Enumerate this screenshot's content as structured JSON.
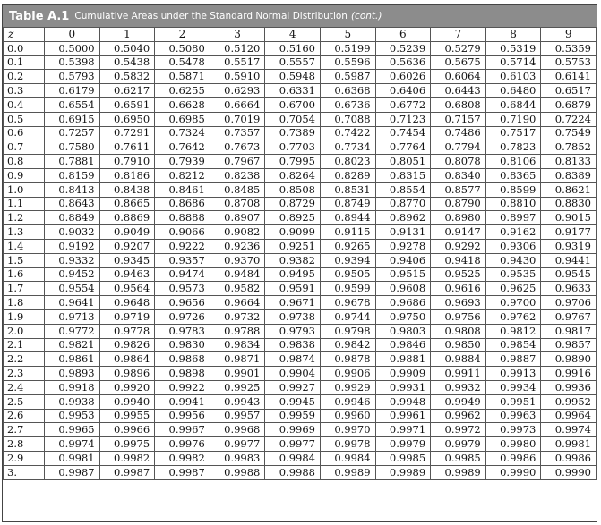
{
  "title": {
    "label": "Table A.1",
    "text": "Cumulative Areas under the Standard Normal Distribution",
    "cont": "(cont.)"
  },
  "columns": [
    "z",
    "0",
    "1",
    "2",
    "3",
    "4",
    "5",
    "6",
    "7",
    "8",
    "9"
  ],
  "rows": [
    {
      "z": "0.0",
      "v": [
        "0.5000",
        "0.5040",
        "0.5080",
        "0.5120",
        "0.5160",
        "0.5199",
        "0.5239",
        "0.5279",
        "0.5319",
        "0.5359"
      ]
    },
    {
      "z": "0.1",
      "v": [
        "0.5398",
        "0.5438",
        "0.5478",
        "0.5517",
        "0.5557",
        "0.5596",
        "0.5636",
        "0.5675",
        "0.5714",
        "0.5753"
      ]
    },
    {
      "z": "0.2",
      "v": [
        "0.5793",
        "0.5832",
        "0.5871",
        "0.5910",
        "0.5948",
        "0.5987",
        "0.6026",
        "0.6064",
        "0.6103",
        "0.6141"
      ]
    },
    {
      "z": "0.3",
      "v": [
        "0.6179",
        "0.6217",
        "0.6255",
        "0.6293",
        "0.6331",
        "0.6368",
        "0.6406",
        "0.6443",
        "0.6480",
        "0.6517"
      ]
    },
    {
      "z": "0.4",
      "v": [
        "0.6554",
        "0.6591",
        "0.6628",
        "0.6664",
        "0.6700",
        "0.6736",
        "0.6772",
        "0.6808",
        "0.6844",
        "0.6879"
      ]
    },
    {
      "z": "0.5",
      "v": [
        "0.6915",
        "0.6950",
        "0.6985",
        "0.7019",
        "0.7054",
        "0.7088",
        "0.7123",
        "0.7157",
        "0.7190",
        "0.7224"
      ]
    },
    {
      "z": "0.6",
      "v": [
        "0.7257",
        "0.7291",
        "0.7324",
        "0.7357",
        "0.7389",
        "0.7422",
        "0.7454",
        "0.7486",
        "0.7517",
        "0.7549"
      ]
    },
    {
      "z": "0.7",
      "v": [
        "0.7580",
        "0.7611",
        "0.7642",
        "0.7673",
        "0.7703",
        "0.7734",
        "0.7764",
        "0.7794",
        "0.7823",
        "0.7852"
      ]
    },
    {
      "z": "0.8",
      "v": [
        "0.7881",
        "0.7910",
        "0.7939",
        "0.7967",
        "0.7995",
        "0.8023",
        "0.8051",
        "0.8078",
        "0.8106",
        "0.8133"
      ]
    },
    {
      "z": "0.9",
      "v": [
        "0.8159",
        "0.8186",
        "0.8212",
        "0.8238",
        "0.8264",
        "0.8289",
        "0.8315",
        "0.8340",
        "0.8365",
        "0.8389"
      ]
    },
    {
      "z": "1.0",
      "v": [
        "0.8413",
        "0.8438",
        "0.8461",
        "0.8485",
        "0.8508",
        "0.8531",
        "0.8554",
        "0.8577",
        "0.8599",
        "0.8621"
      ]
    },
    {
      "z": "1.1",
      "v": [
        "0.8643",
        "0.8665",
        "0.8686",
        "0.8708",
        "0.8729",
        "0.8749",
        "0.8770",
        "0.8790",
        "0.8810",
        "0.8830"
      ]
    },
    {
      "z": "1.2",
      "v": [
        "0.8849",
        "0.8869",
        "0.8888",
        "0.8907",
        "0.8925",
        "0.8944",
        "0.8962",
        "0.8980",
        "0.8997",
        "0.9015"
      ]
    },
    {
      "z": "1.3",
      "v": [
        "0.9032",
        "0.9049",
        "0.9066",
        "0.9082",
        "0.9099",
        "0.9115",
        "0.9131",
        "0.9147",
        "0.9162",
        "0.9177"
      ]
    },
    {
      "z": "1.4",
      "v": [
        "0.9192",
        "0.9207",
        "0.9222",
        "0.9236",
        "0.9251",
        "0.9265",
        "0.9278",
        "0.9292",
        "0.9306",
        "0.9319"
      ]
    },
    {
      "z": "1.5",
      "v": [
        "0.9332",
        "0.9345",
        "0.9357",
        "0.9370",
        "0.9382",
        "0.9394",
        "0.9406",
        "0.9418",
        "0.9430",
        "0.9441"
      ]
    },
    {
      "z": "1.6",
      "v": [
        "0.9452",
        "0.9463",
        "0.9474",
        "0.9484",
        "0.9495",
        "0.9505",
        "0.9515",
        "0.9525",
        "0.9535",
        "0.9545"
      ]
    },
    {
      "z": "1.7",
      "v": [
        "0.9554",
        "0.9564",
        "0.9573",
        "0.9582",
        "0.9591",
        "0.9599",
        "0.9608",
        "0.9616",
        "0.9625",
        "0.9633"
      ]
    },
    {
      "z": "1.8",
      "v": [
        "0.9641",
        "0.9648",
        "0.9656",
        "0.9664",
        "0.9671",
        "0.9678",
        "0.9686",
        "0.9693",
        "0.9700",
        "0.9706"
      ]
    },
    {
      "z": "1.9",
      "v": [
        "0.9713",
        "0.9719",
        "0.9726",
        "0.9732",
        "0.9738",
        "0.9744",
        "0.9750",
        "0.9756",
        "0.9762",
        "0.9767"
      ]
    },
    {
      "z": "2.0",
      "v": [
        "0.9772",
        "0.9778",
        "0.9783",
        "0.9788",
        "0.9793",
        "0.9798",
        "0.9803",
        "0.9808",
        "0.9812",
        "0.9817"
      ]
    },
    {
      "z": "2.1",
      "v": [
        "0.9821",
        "0.9826",
        "0.9830",
        "0.9834",
        "0.9838",
        "0.9842",
        "0.9846",
        "0.9850",
        "0.9854",
        "0.9857"
      ]
    },
    {
      "z": "2.2",
      "v": [
        "0.9861",
        "0.9864",
        "0.9868",
        "0.9871",
        "0.9874",
        "0.9878",
        "0.9881",
        "0.9884",
        "0.9887",
        "0.9890"
      ]
    },
    {
      "z": "2.3",
      "v": [
        "0.9893",
        "0.9896",
        "0.9898",
        "0.9901",
        "0.9904",
        "0.9906",
        "0.9909",
        "0.9911",
        "0.9913",
        "0.9916"
      ]
    },
    {
      "z": "2.4",
      "v": [
        "0.9918",
        "0.9920",
        "0.9922",
        "0.9925",
        "0.9927",
        "0.9929",
        "0.9931",
        "0.9932",
        "0.9934",
        "0.9936"
      ]
    },
    {
      "z": "2.5",
      "v": [
        "0.9938",
        "0.9940",
        "0.9941",
        "0.9943",
        "0.9945",
        "0.9946",
        "0.9948",
        "0.9949",
        "0.9951",
        "0.9952"
      ]
    },
    {
      "z": "2.6",
      "v": [
        "0.9953",
        "0.9955",
        "0.9956",
        "0.9957",
        "0.9959",
        "0.9960",
        "0.9961",
        "0.9962",
        "0.9963",
        "0.9964"
      ]
    },
    {
      "z": "2.7",
      "v": [
        "0.9965",
        "0.9966",
        "0.9967",
        "0.9968",
        "0.9969",
        "0.9970",
        "0.9971",
        "0.9972",
        "0.9973",
        "0.9974"
      ]
    },
    {
      "z": "2.8",
      "v": [
        "0.9974",
        "0.9975",
        "0.9976",
        "0.9977",
        "0.9977",
        "0.9978",
        "0.9979",
        "0.9979",
        "0.9980",
        "0.9981"
      ]
    },
    {
      "z": "2.9",
      "v": [
        "0.9981",
        "0.9982",
        "0.9982",
        "0.9983",
        "0.9984",
        "0.9984",
        "0.9985",
        "0.9985",
        "0.9986",
        "0.9986"
      ]
    },
    {
      "z": "3.",
      "v": [
        "0.9987",
        "0.9987",
        "0.9987",
        "0.9988",
        "0.9988",
        "0.9989",
        "0.9989",
        "0.9989",
        "0.9990",
        "0.9990"
      ]
    }
  ]
}
